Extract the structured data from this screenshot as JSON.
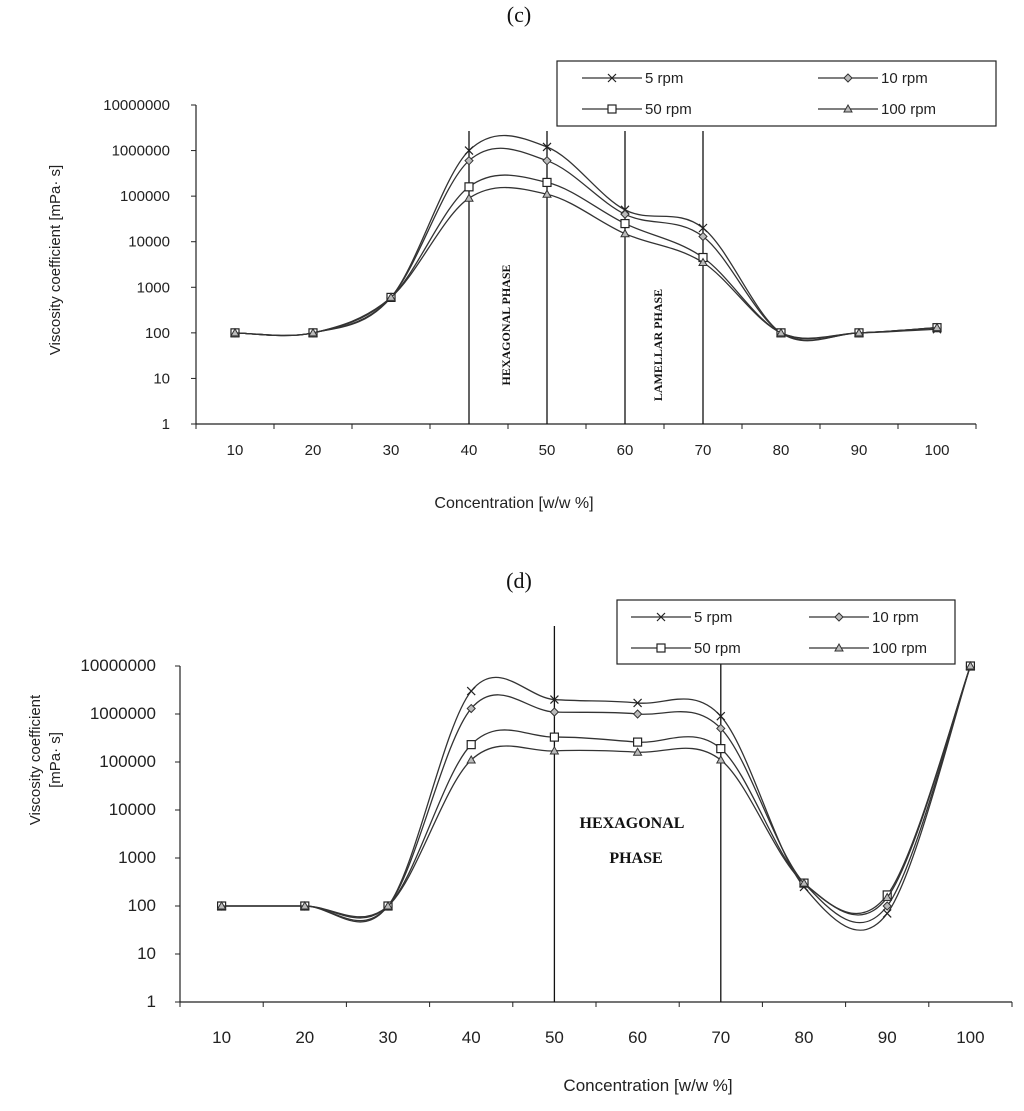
{
  "chart_data": [
    {
      "panel_label": "(c)",
      "type": "line",
      "xlabel": "Concentration [w/w %]",
      "ylabel": "Viscosity coefficient   [mPa· s]",
      "x": [
        10,
        20,
        30,
        40,
        50,
        60,
        70,
        80,
        90,
        100
      ],
      "xlim": [
        5,
        105
      ],
      "ylim": [
        1,
        10000000
      ],
      "yscale": "log",
      "y_ticks": [
        "1",
        "10",
        "100",
        "1000",
        "10000",
        "100000",
        "1000000",
        "10000000"
      ],
      "x_ticks": [
        "10",
        "20",
        "30",
        "40",
        "50",
        "60",
        "70",
        "80",
        "90",
        "100"
      ],
      "legend_position": "top-right",
      "series": [
        {
          "name": "5 rpm",
          "marker": "x",
          "values": [
            100,
            100,
            600,
            1000000,
            1200000,
            50000,
            20000,
            100,
            100,
            120
          ]
        },
        {
          "name": "10 rpm",
          "marker": "diamond",
          "values": [
            100,
            100,
            600,
            600000,
            600000,
            40000,
            13000,
            100,
            100,
            130
          ]
        },
        {
          "name": "50 rpm",
          "marker": "square",
          "values": [
            100,
            100,
            600,
            160000,
            200000,
            25000,
            4500,
            100,
            100,
            130
          ]
        },
        {
          "name": "100 rpm",
          "marker": "triangle",
          "values": [
            100,
            100,
            600,
            90000,
            110000,
            15000,
            3500,
            100,
            100,
            130
          ]
        }
      ],
      "phase_boundaries": [
        40,
        50,
        60,
        70
      ],
      "phase_labels": [
        "HEXAGONAL PHASE",
        "LAMELLAR PHASE"
      ]
    },
    {
      "panel_label": "(d)",
      "type": "line",
      "xlabel": "Concentration [w/w %]",
      "ylabel_lines": [
        "Viscosity coefficient",
        "[mPa· s]"
      ],
      "x": [
        10,
        20,
        30,
        40,
        50,
        60,
        70,
        80,
        90,
        100
      ],
      "xlim": [
        5,
        105
      ],
      "ylim": [
        1,
        10000000
      ],
      "yscale": "log",
      "y_ticks": [
        "1",
        "10",
        "100",
        "1000",
        "10000",
        "100000",
        "1000000",
        "10000000"
      ],
      "x_ticks": [
        "10",
        "20",
        "30",
        "40",
        "50",
        "60",
        "70",
        "80",
        "90",
        "100"
      ],
      "legend_position": "top-right",
      "series": [
        {
          "name": "5 rpm",
          "marker": "x",
          "values": [
            100,
            100,
            100,
            3000000,
            2000000,
            1700000,
            900000,
            250,
            70,
            10000000
          ]
        },
        {
          "name": "10 rpm",
          "marker": "diamond",
          "values": [
            100,
            100,
            100,
            1300000,
            1100000,
            1000000,
            500000,
            300,
            100,
            10000000
          ]
        },
        {
          "name": "50 rpm",
          "marker": "square",
          "values": [
            100,
            100,
            100,
            230000,
            330000,
            260000,
            190000,
            300,
            170,
            10000000
          ]
        },
        {
          "name": "100 rpm",
          "marker": "triangle",
          "values": [
            100,
            100,
            100,
            110000,
            170000,
            160000,
            110000,
            300,
            150,
            10000000
          ]
        }
      ],
      "phase_boundaries": [
        50,
        70
      ],
      "phase_labels": [
        "HEXAGONAL",
        "PHASE"
      ]
    }
  ]
}
